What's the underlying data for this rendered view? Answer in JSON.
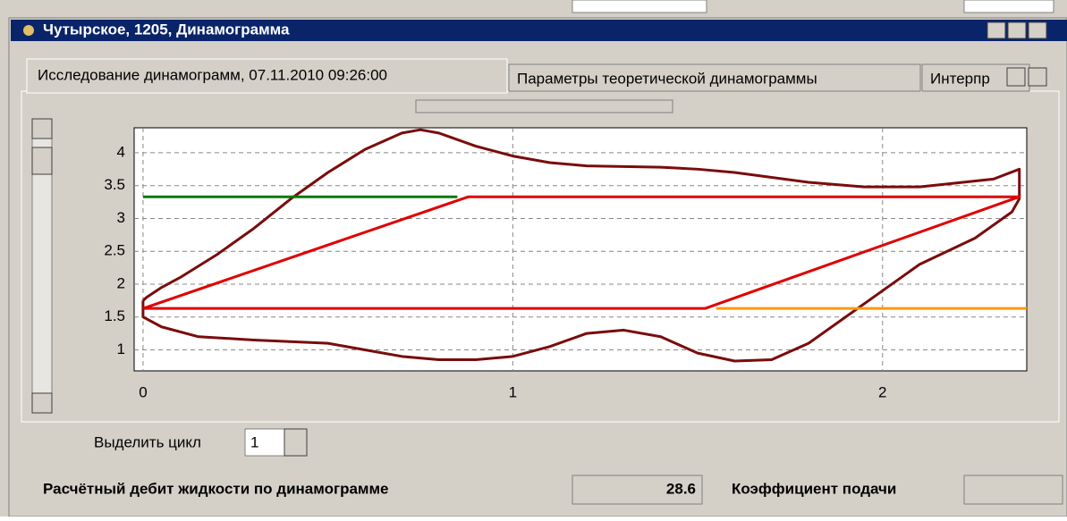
{
  "window": {
    "title": "Чутырское, 1205, Динамограмма"
  },
  "tabs": [
    "Исследование динамограмм, 07.11.2010 09:26:00",
    "Параметры теоретической динамограммы",
    "Интерпр"
  ],
  "cycle": {
    "label": "Выделить цикл",
    "value": 1
  },
  "flow": {
    "label": "Расчётный дебит жидкости по динамограмме",
    "value": 28.6
  },
  "feed": {
    "label": "Коэффициент подачи"
  },
  "chart_data": {
    "type": "line",
    "xlim": [
      -0.024,
      2.39
    ],
    "ylim": [
      0.68,
      4.38
    ],
    "xticks": [
      0,
      1,
      2
    ],
    "yticks": [
      1,
      1.5,
      2,
      2.5,
      3,
      3.5,
      4
    ],
    "grid": true,
    "series": [
      {
        "color": "#7a0c0c",
        "x": [
          0,
          0.01,
          0.05,
          0.1,
          0.2,
          0.3,
          0.4,
          0.5,
          0.6,
          0.7,
          0.75,
          0.8,
          0.9,
          1.0,
          1.1,
          1.2,
          1.4,
          1.5,
          1.6,
          1.8,
          1.95,
          2.1,
          2.3,
          2.37,
          2.37,
          2.35,
          2.25,
          2.1,
          2.0,
          1.9,
          1.8,
          1.7,
          1.6,
          1.5,
          1.4,
          1.3,
          1.2,
          1.1,
          1.0,
          0.9,
          0.8,
          0.7,
          0.6,
          0.5,
          0.3,
          0.15,
          0.05,
          0,
          0
        ],
        "values": [
          1.75,
          1.8,
          1.95,
          2.1,
          2.45,
          2.85,
          3.3,
          3.7,
          4.05,
          4.3,
          4.35,
          4.3,
          4.1,
          3.95,
          3.85,
          3.8,
          3.78,
          3.75,
          3.7,
          3.55,
          3.48,
          3.48,
          3.6,
          3.75,
          3.3,
          3.1,
          2.7,
          2.3,
          1.9,
          1.5,
          1.1,
          0.85,
          0.83,
          0.95,
          1.2,
          1.3,
          1.25,
          1.05,
          0.9,
          0.85,
          0.85,
          0.9,
          1.0,
          1.1,
          1.15,
          1.2,
          1.35,
          1.5,
          1.75
        ]
      },
      {
        "color": "#e00000",
        "x": [
          0,
          0.88,
          2.37,
          1.52,
          0
        ],
        "values": [
          1.63,
          3.33,
          3.33,
          1.63,
          1.63
        ]
      },
      {
        "color": "#0a7a0a",
        "x": [
          0,
          0.85
        ],
        "values": [
          3.33,
          3.33
        ]
      },
      {
        "color": "#ff9900",
        "x": [
          1.55,
          2.39
        ],
        "values": [
          1.63,
          1.63
        ]
      }
    ]
  }
}
